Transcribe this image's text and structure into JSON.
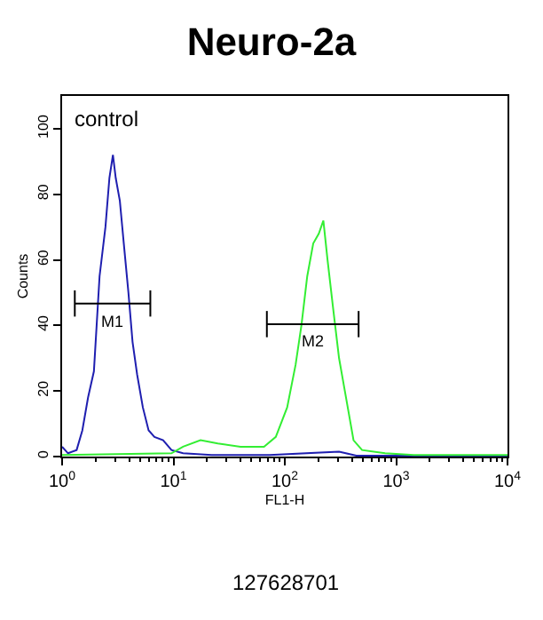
{
  "chart_data": {
    "type": "line",
    "title": "Neuro-2a",
    "xlabel": "FL1-H",
    "ylabel": "Counts",
    "log": "x",
    "xlim": [
      1,
      10000
    ],
    "ylim": [
      0,
      110
    ],
    "xticks": [
      {
        "value": 1,
        "label": "10$^{0}$"
      },
      {
        "value": 10,
        "label": "10$^{1}$"
      },
      {
        "value": 100,
        "label": "10$^{2}$"
      },
      {
        "value": 1000,
        "label": "10$^{3}$"
      },
      {
        "value": 10000,
        "label": "10$^{4}$"
      }
    ],
    "yticks": [
      0,
      20,
      40,
      60,
      80,
      100
    ],
    "annotations": [
      "control",
      "M1",
      "M2",
      "127628701"
    ],
    "series": [
      {
        "color": "#1f1fb0",
        "x": [
          1.0,
          1.13,
          1.35,
          1.52,
          1.71,
          1.93,
          2.17,
          2.45,
          2.66,
          2.86,
          3.03,
          3.3,
          3.58,
          3.94,
          4.29,
          4.72,
          5.31,
          5.98,
          6.75,
          8.07,
          9.6,
          12.2,
          22,
          73,
          307,
          439,
          10000
        ],
        "values": [
          3,
          1,
          2,
          8,
          18,
          26,
          55,
          70,
          85,
          92,
          85,
          78,
          65,
          50,
          35,
          25,
          15,
          8,
          6,
          5,
          2,
          1,
          0.5,
          0.5,
          1.5,
          0.3,
          0.3
        ]
      },
      {
        "color": "#33ee33",
        "x": [
          1.0,
          9.6,
          12.2,
          17.5,
          25,
          40,
          65,
          83,
          105,
          125,
          141,
          159,
          180,
          202,
          222,
          242,
          272,
          307,
          346,
          414,
          494,
          795,
          1445,
          10000
        ],
        "values": [
          0.5,
          1,
          3,
          5,
          4,
          3,
          3,
          6,
          15,
          28,
          40,
          55,
          65,
          68,
          72,
          60,
          45,
          30,
          20,
          5,
          2,
          1,
          0.5,
          0.5
        ]
      },
      {
        "color": "#000000",
        "x": [
          1.3,
          6.2
        ],
        "values": [
          46.7,
          46.7
        ],
        "errors": [
          4,
          4
        ]
      },
      {
        "color": "#000000",
        "x": [
          69,
          460
        ],
        "values": [
          40.4,
          40.4
        ],
        "errors": [
          4,
          4
        ]
      }
    ]
  }
}
